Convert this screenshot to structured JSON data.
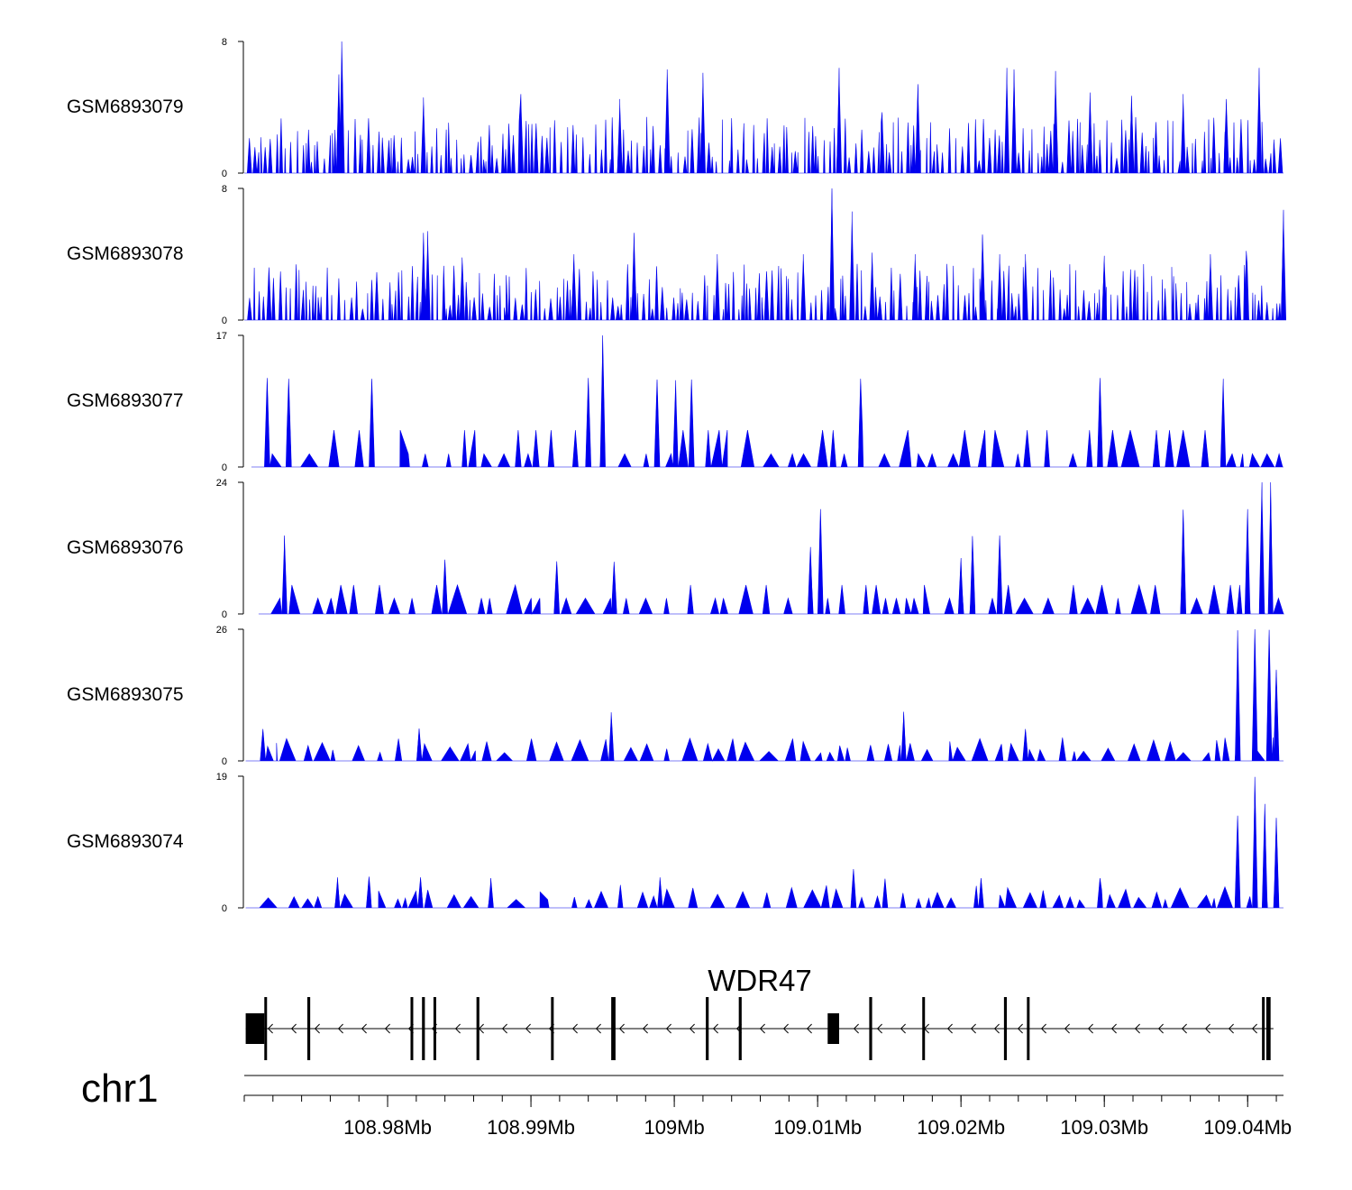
{
  "chart_data": {
    "type": "area",
    "description_kind": "genome browser coverage tracks",
    "series_color": "#0000ee",
    "tracks": [
      {
        "name": "GSM6893079",
        "ymax": 8,
        "ylim": [
          0,
          8
        ],
        "tick_labels": [
          "8",
          "0"
        ],
        "x_start_kb": 108.97,
        "x_end_kb": 109.0425,
        "peaks": [
          [
            108.9766,
            6
          ],
          [
            108.9768,
            8
          ],
          [
            108.9825,
            4.6
          ],
          [
            108.9893,
            4.8
          ],
          [
            108.9962,
            4.5
          ],
          [
            108.9995,
            6.3
          ],
          [
            109.002,
            6.1
          ],
          [
            109.0115,
            6.4
          ],
          [
            109.0145,
            3.7
          ],
          [
            109.017,
            5.4
          ],
          [
            109.0232,
            6.4
          ],
          [
            109.0237,
            6.3
          ],
          [
            109.0266,
            6.2
          ],
          [
            109.029,
            4.9
          ],
          [
            109.0319,
            4.7
          ],
          [
            109.0355,
            4.8
          ],
          [
            109.0408,
            6.4
          ],
          [
            109.0385,
            4.5
          ]
        ]
      },
      {
        "name": "GSM6893078",
        "ymax": 8,
        "ylim": [
          0,
          8
        ],
        "tick_labels": [
          "8",
          "0"
        ],
        "x_start_kb": 108.97,
        "x_end_kb": 109.0425,
        "peaks": [
          [
            108.9825,
            5.3
          ],
          [
            108.9828,
            5.4
          ],
          [
            108.9852,
            3.8
          ],
          [
            108.993,
            4.0
          ],
          [
            108.9972,
            5.3
          ],
          [
            109.003,
            4.0
          ],
          [
            109.009,
            4.0
          ],
          [
            109.011,
            8.0
          ],
          [
            109.0124,
            6.6
          ],
          [
            109.0138,
            4.1
          ],
          [
            109.0168,
            4.0
          ],
          [
            109.0215,
            5.2
          ],
          [
            109.0227,
            4.0
          ],
          [
            109.0245,
            4.0
          ],
          [
            109.03,
            3.9
          ],
          [
            109.0374,
            4.0
          ],
          [
            109.0399,
            4.2
          ],
          [
            109.0425,
            6.7
          ]
        ]
      },
      {
        "name": "GSM6893077",
        "ymax": 17,
        "ylim": [
          0,
          17
        ],
        "tick_labels": [
          "17",
          "0"
        ],
        "x_start_kb": 108.9705,
        "x_end_kb": 109.0425,
        "peaks": [
          [
            108.9716,
            11.5
          ],
          [
            108.9731,
            11.4
          ],
          [
            108.9789,
            11.4
          ],
          [
            108.994,
            11.5
          ],
          [
            108.995,
            17.0
          ],
          [
            108.9988,
            11.3
          ],
          [
            109.0001,
            11.2
          ],
          [
            109.0012,
            11.3
          ],
          [
            109.013,
            11.4
          ],
          [
            109.0297,
            11.5
          ],
          [
            109.0383,
            11.4
          ]
        ]
      },
      {
        "name": "GSM6893076",
        "ymax": 24,
        "ylim": [
          0,
          24
        ],
        "tick_labels": [
          "24",
          "0"
        ],
        "x_start_kb": 108.971,
        "x_end_kb": 109.0425,
        "peaks": [
          [
            108.9728,
            14.3
          ],
          [
            108.984,
            9.9
          ],
          [
            108.9918,
            9.6
          ],
          [
            108.9958,
            9.5
          ],
          [
            109.0095,
            12.2
          ],
          [
            109.0102,
            19.1
          ],
          [
            109.02,
            10.2
          ],
          [
            109.0208,
            14.2
          ],
          [
            109.0227,
            14.3
          ],
          [
            109.0355,
            19.0
          ],
          [
            109.04,
            19.1
          ],
          [
            109.041,
            24.0
          ],
          [
            109.0416,
            24.0
          ]
        ]
      },
      {
        "name": "GSM6893075",
        "ymax": 26,
        "ylim": [
          0,
          26
        ],
        "tick_labels": [
          "26",
          "0"
        ],
        "x_start_kb": 108.9701,
        "x_end_kb": 109.0425,
        "peaks": [
          [
            108.9713,
            6.3
          ],
          [
            108.9822,
            6.4
          ],
          [
            108.9956,
            9.6
          ],
          [
            109.016,
            9.7
          ],
          [
            109.0245,
            6.3
          ],
          [
            109.0393,
            25.8
          ],
          [
            109.0405,
            26.0
          ],
          [
            109.0415,
            25.9
          ],
          [
            109.042,
            18.0
          ]
        ]
      },
      {
        "name": "GSM6893074",
        "ymax": 19,
        "ylim": [
          0,
          19
        ],
        "tick_labels": [
          "19",
          "0"
        ],
        "x_start_kb": 108.9701,
        "x_end_kb": 109.0425,
        "peaks": [
          [
            108.9765,
            4.4
          ],
          [
            108.9787,
            4.5
          ],
          [
            108.9823,
            4.4
          ],
          [
            108.9872,
            4.3
          ],
          [
            108.999,
            4.4
          ],
          [
            109.0125,
            5.6
          ],
          [
            109.0147,
            4.2
          ],
          [
            109.0214,
            4.3
          ],
          [
            109.0297,
            4.3
          ],
          [
            109.0393,
            13.3
          ],
          [
            109.0405,
            18.9
          ],
          [
            109.0412,
            15.0
          ],
          [
            109.042,
            13.0
          ]
        ]
      }
    ],
    "gene": {
      "name": "WDR47",
      "strand": "-",
      "start_kb": 108.9701,
      "end_kb": 109.0418,
      "exons_kb": [
        [
          108.9701,
          108.9714
        ],
        [
          108.9714,
          108.9715
        ],
        [
          108.9744,
          108.9746
        ],
        [
          108.9816,
          108.9817
        ],
        [
          108.9824,
          108.9826
        ],
        [
          108.9832,
          108.9833
        ],
        [
          108.9862,
          108.9864
        ],
        [
          108.9914,
          108.9915
        ],
        [
          108.9956,
          108.9959
        ],
        [
          109.0022,
          109.0024
        ],
        [
          109.0045,
          109.0047
        ],
        [
          109.0107,
          109.0115
        ],
        [
          109.0136,
          109.0138
        ],
        [
          109.0173,
          109.0174
        ],
        [
          109.023,
          109.0232
        ],
        [
          109.0246,
          109.0247
        ],
        [
          109.041,
          109.0411
        ],
        [
          109.0413,
          109.0416
        ]
      ]
    },
    "axis": {
      "chromosome": "chr1",
      "xlim_kb": [
        108.97,
        109.0425
      ],
      "minor_tick_step_kb": 0.002,
      "major_ticks": [
        {
          "kb": 108.98,
          "label": "108.98Mb"
        },
        {
          "kb": 108.99,
          "label": "108.99Mb"
        },
        {
          "kb": 109.0,
          "label": "109Mb"
        },
        {
          "kb": 109.01,
          "label": "109.01Mb"
        },
        {
          "kb": 109.02,
          "label": "109.02Mb"
        },
        {
          "kb": 109.03,
          "label": "109.03Mb"
        },
        {
          "kb": 109.04,
          "label": "109.04Mb"
        }
      ]
    }
  }
}
